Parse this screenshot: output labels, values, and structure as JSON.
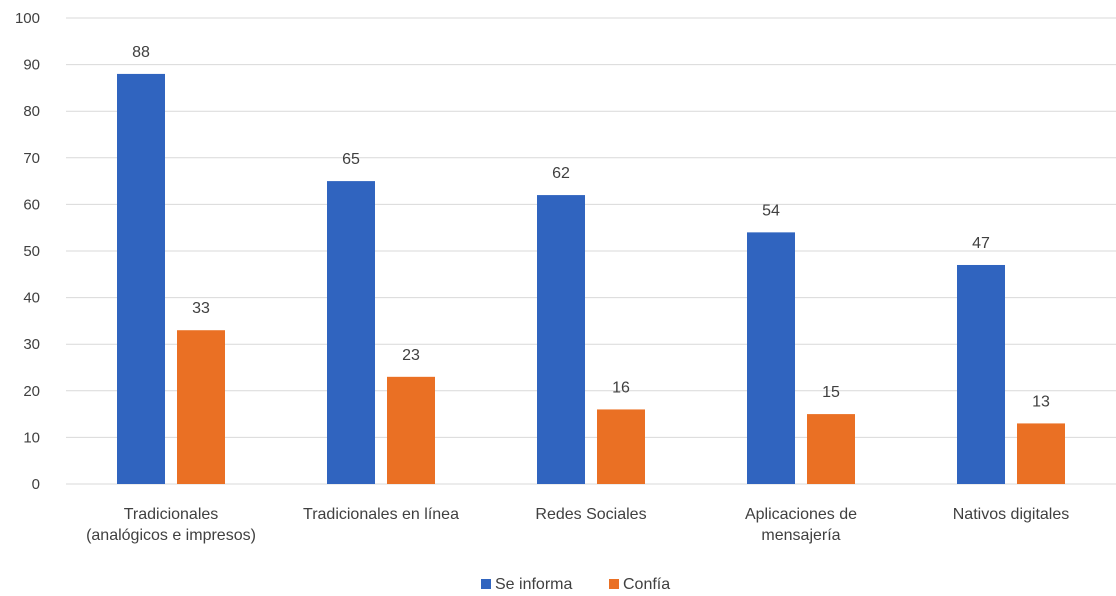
{
  "chart_data": {
    "type": "bar",
    "categories": [
      [
        "Tradicionales",
        "(analógicos e impresos)"
      ],
      [
        "Tradicionales en línea"
      ],
      [
        "Redes Sociales"
      ],
      [
        "Aplicaciones de",
        "mensajería"
      ],
      [
        "Nativos digitales"
      ]
    ],
    "series": [
      {
        "name": "Se informa",
        "values": [
          88,
          65,
          62,
          54,
          47
        ],
        "labels": [
          "88",
          "65",
          "62",
          "54",
          "47"
        ],
        "color": "#3064bf"
      },
      {
        "name": "Confía",
        "values": [
          33,
          23,
          16,
          15,
          13
        ],
        "labels": [
          "33",
          "23",
          "16",
          "15",
          "13"
        ],
        "color": "#ea7024"
      }
    ],
    "y_ticks": [
      "0",
      "10",
      "20",
      "30",
      "40",
      "50",
      "60",
      "70",
      "80",
      "90",
      "100"
    ],
    "ylim": [
      0,
      100
    ],
    "grid": true,
    "legend_position": "bottom",
    "title": "",
    "xlabel": "",
    "ylabel": ""
  }
}
